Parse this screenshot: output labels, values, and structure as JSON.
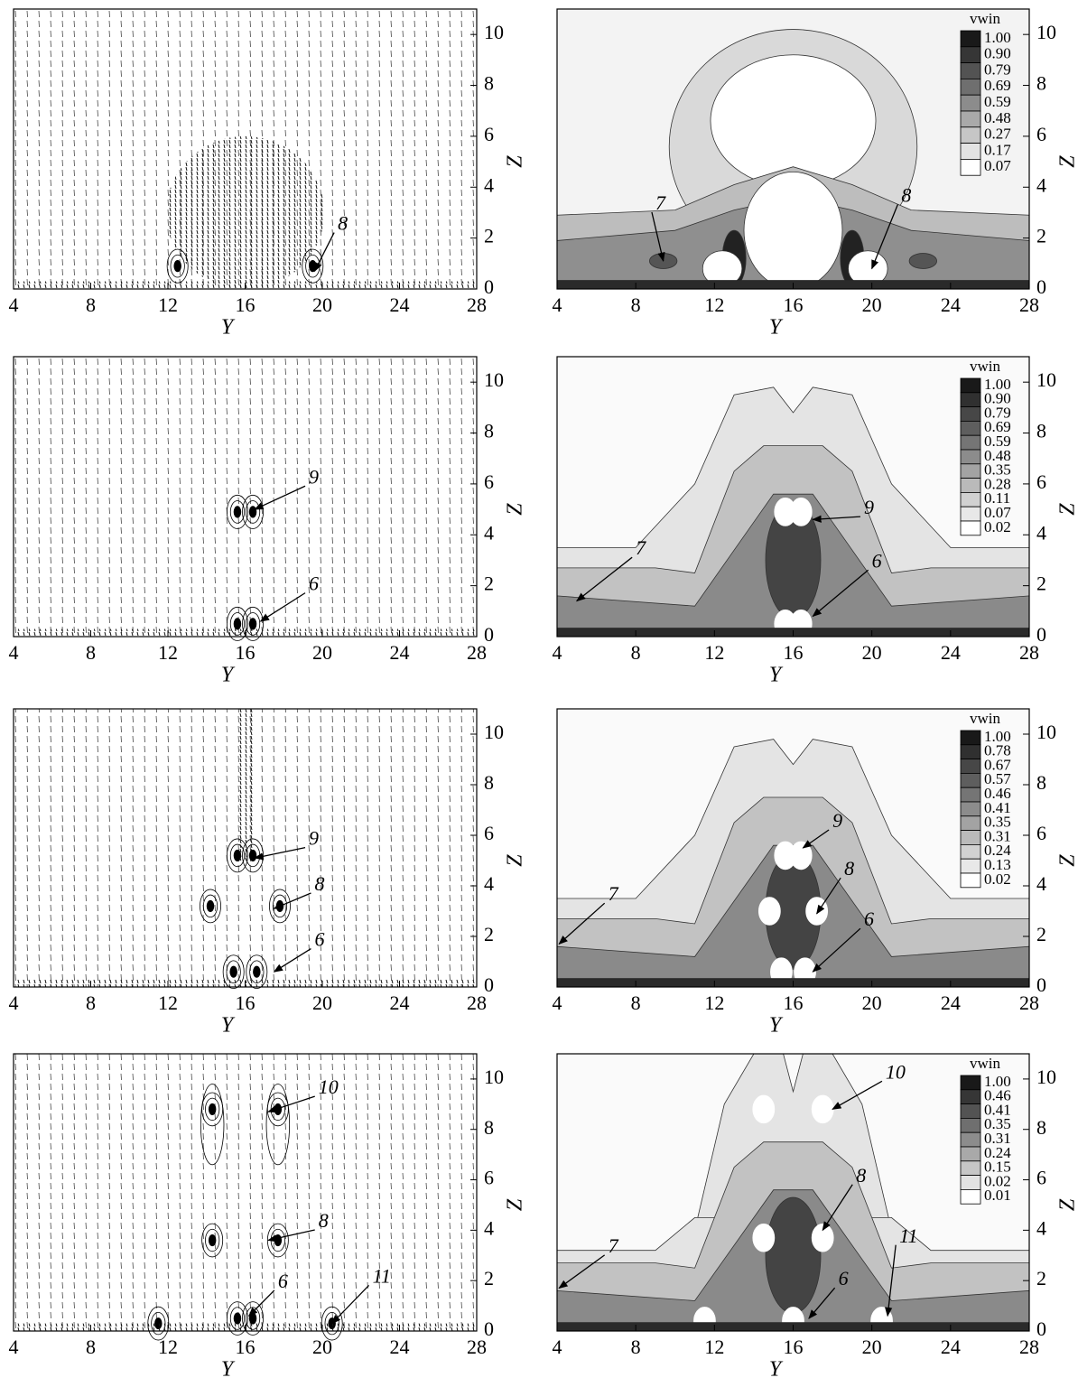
{
  "figure": {
    "panels": [
      {
        "kind": "vectors",
        "xlabel": "Y",
        "ylabel": "Z",
        "xlim": [
          4,
          28
        ],
        "ylim": [
          0,
          11
        ],
        "xticks": [
          4,
          8,
          12,
          16,
          20,
          24,
          28
        ],
        "yticks": [
          0,
          2,
          4,
          6,
          8,
          10
        ],
        "annotations": [
          "8"
        ]
      },
      {
        "kind": "contours",
        "xlabel": "Y",
        "ylabel": "Z",
        "xlim": [
          4,
          28
        ],
        "ylim": [
          0,
          11
        ],
        "xticks": [
          4,
          8,
          12,
          16,
          20,
          24,
          28
        ],
        "yticks": [
          0,
          2,
          4,
          6,
          8,
          10
        ],
        "annotations": [
          "7",
          "8"
        ],
        "colorbar": {
          "title": "vwin",
          "levels": [
            {
              "value": 1,
              "label": "1.00"
            },
            {
              "value": 0.9,
              "label": "0.90"
            },
            0.79,
            0.69,
            0.59,
            0.48,
            0.27,
            0.17,
            0.07
          ]
        }
      },
      {
        "kind": "vectors",
        "xlabel": "Y",
        "ylabel": "Z",
        "xlim": [
          4,
          28
        ],
        "ylim": [
          0,
          11
        ],
        "xticks": [
          4,
          8,
          12,
          16,
          20,
          24,
          28
        ],
        "yticks": [
          0,
          2,
          4,
          6,
          8,
          10
        ],
        "annotations": [
          "9",
          "6"
        ]
      },
      {
        "kind": "contours",
        "xlabel": "Y",
        "ylabel": "Z",
        "xlim": [
          4,
          28
        ],
        "ylim": [
          0,
          11
        ],
        "xticks": [
          4,
          8,
          12,
          16,
          20,
          24,
          28
        ],
        "yticks": [
          0,
          2,
          4,
          6,
          8,
          10
        ],
        "annotations": [
          "9",
          "7",
          "6"
        ],
        "colorbar": {
          "title": "vwin",
          "levels": [
            {
              "value": 1,
              "label": "1.00"
            },
            {
              "value": 0.9,
              "label": "0.90"
            },
            0.79,
            0.69,
            0.59,
            0.48,
            0.35,
            0.28,
            0.11,
            0.07,
            0.02
          ]
        }
      },
      {
        "kind": "vectors",
        "xlabel": "Y",
        "ylabel": "Z",
        "xlim": [
          4,
          28
        ],
        "ylim": [
          0,
          11
        ],
        "xticks": [
          4,
          8,
          12,
          16,
          20,
          24,
          28
        ],
        "yticks": [
          0,
          2,
          4,
          6,
          8,
          10
        ],
        "annotations": [
          "9",
          "8",
          "6"
        ]
      },
      {
        "kind": "contours",
        "xlabel": "Y",
        "ylabel": "Z",
        "xlim": [
          4,
          28
        ],
        "ylim": [
          0,
          11
        ],
        "xticks": [
          4,
          8,
          12,
          16,
          20,
          24,
          28
        ],
        "yticks": [
          0,
          2,
          4,
          6,
          8,
          10
        ],
        "annotations": [
          "9",
          "8",
          "7",
          "6"
        ],
        "colorbar": {
          "title": "vwin",
          "levels": [
            {
              "value": 1,
              "label": "1.00"
            },
            0.78,
            0.67,
            0.57,
            0.46,
            0.41,
            0.35,
            0.31,
            0.24,
            0.13,
            0.02
          ]
        }
      },
      {
        "kind": "vectors",
        "xlabel": "Y",
        "ylabel": "Z",
        "xlim": [
          4,
          28
        ],
        "ylim": [
          0,
          11
        ],
        "xticks": [
          4,
          8,
          12,
          16,
          20,
          24,
          28
        ],
        "yticks": [
          0,
          2,
          4,
          6,
          8,
          10
        ],
        "annotations": [
          "10",
          "8",
          "6",
          "11"
        ]
      },
      {
        "kind": "contours",
        "xlabel": "Y",
        "ylabel": "Z",
        "xlim": [
          4,
          28
        ],
        "ylim": [
          0,
          11
        ],
        "xticks": [
          4,
          8,
          12,
          16,
          20,
          24,
          28
        ],
        "yticks": [
          0,
          2,
          4,
          6,
          8,
          10
        ],
        "annotations": [
          "10",
          "8",
          "7",
          "11",
          "6"
        ],
        "colorbar": {
          "title": "vwin",
          "levels": [
            {
              "value": 1,
              "label": "1.00"
            },
            0.46,
            0.41,
            0.35,
            0.31,
            0.24,
            0.15,
            0.02,
            0.01
          ]
        }
      }
    ]
  }
}
